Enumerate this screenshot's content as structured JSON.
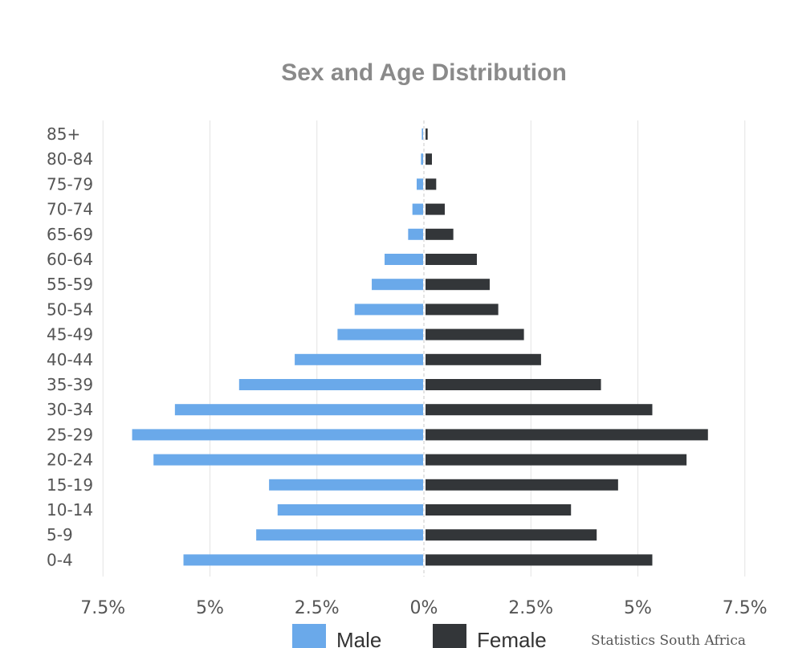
{
  "chart_data": {
    "type": "bar",
    "orientation": "horizontal-population-pyramid",
    "title": "Sex and Age Distribution",
    "categories": [
      "0-4",
      "5-9",
      "10-14",
      "15-19",
      "20-24",
      "25-29",
      "30-34",
      "35-39",
      "40-44",
      "45-49",
      "50-54",
      "55-59",
      "60-64",
      "65-69",
      "70-74",
      "75-79",
      "80-84",
      "85+"
    ],
    "series": [
      {
        "name": "Male",
        "color": "#6aa9ea",
        "values": [
          5.6,
          3.9,
          3.4,
          3.6,
          6.3,
          6.8,
          5.8,
          4.3,
          3.0,
          2.0,
          1.6,
          1.2,
          0.9,
          0.35,
          0.25,
          0.15,
          0.05,
          0.03
        ]
      },
      {
        "name": "Female",
        "color": "#333639",
        "values": [
          5.3,
          4.0,
          3.4,
          4.5,
          6.1,
          6.6,
          5.3,
          4.1,
          2.7,
          2.3,
          1.7,
          1.5,
          1.2,
          0.65,
          0.45,
          0.25,
          0.15,
          0.05
        ]
      }
    ],
    "x_ticks": [
      "7.5%",
      "5%",
      "2.5%",
      "0%",
      "2.5%",
      "5%",
      "7.5%"
    ],
    "xlim": [
      -7.5,
      7.5
    ],
    "grid": true,
    "legend_position": "bottom-center",
    "credit": "Statistics South Africa"
  }
}
